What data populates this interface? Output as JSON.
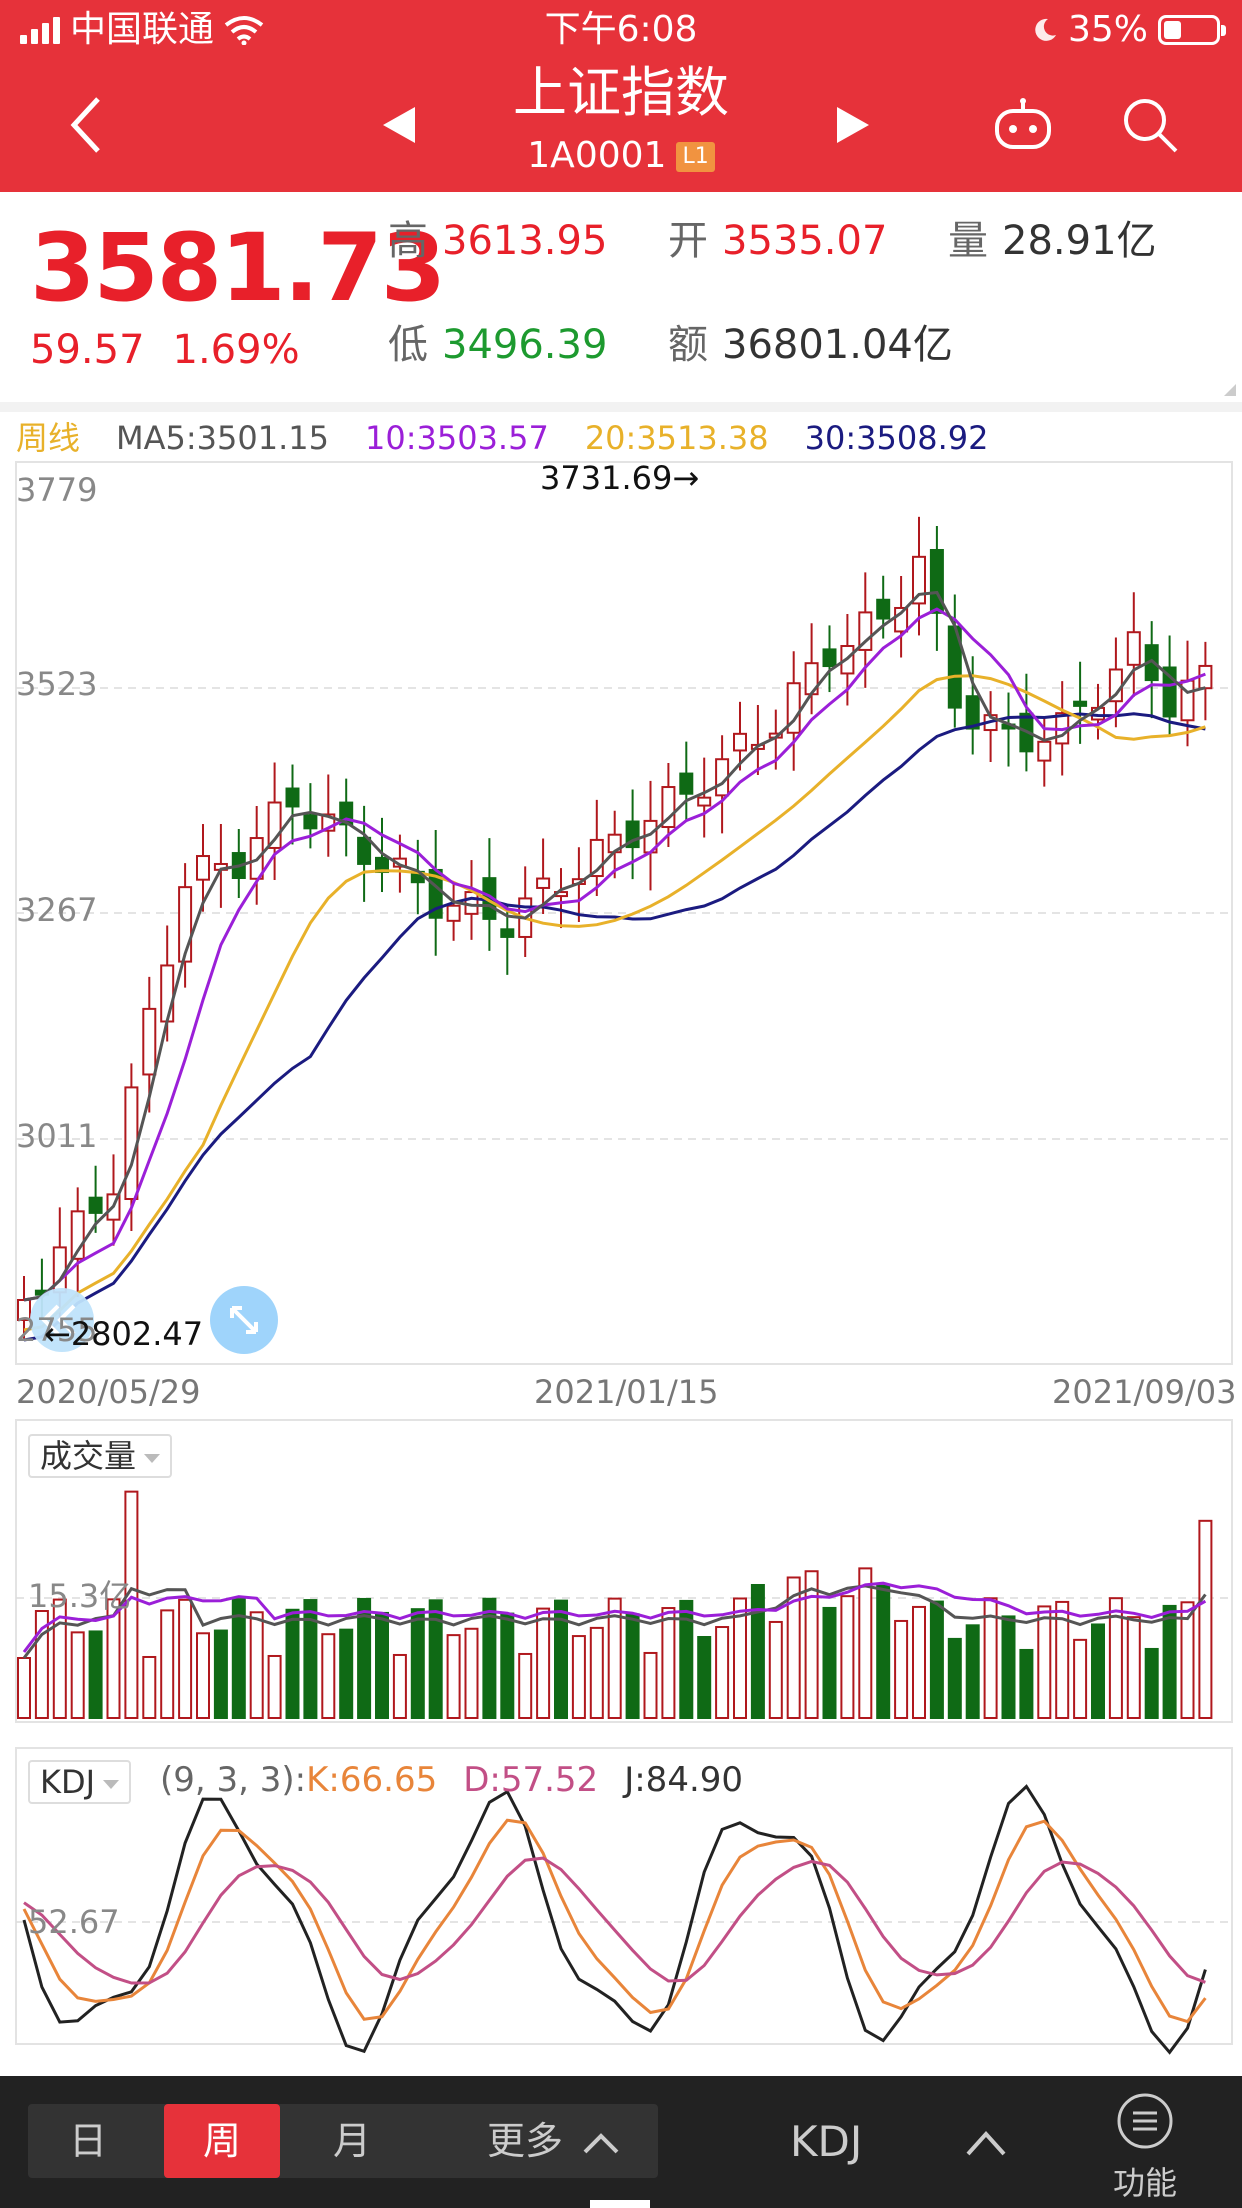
{
  "status_bar": {
    "carrier": "中国联通",
    "time": "下午6:08",
    "battery": "35%"
  },
  "header": {
    "title": "上证指数",
    "code": "1A0001",
    "badge": "L1"
  },
  "icons": {
    "back": "chevron-left-icon",
    "prev": "triangle-left-icon",
    "next": "triangle-right-icon",
    "robot": "robot-icon",
    "search": "search-icon",
    "expand": "expand-icon",
    "arrow_left": "double-arrow-left-icon",
    "menu": "menu-icon",
    "up": "chevron-up-icon"
  },
  "quote": {
    "price": "3581.73",
    "change": "59.57",
    "change_pct": "1.69%",
    "high_label": "高",
    "high": "3613.95",
    "open_label": "开",
    "open": "3535.07",
    "volume_label": "量",
    "volume": "28.91亿",
    "low_label": "低",
    "low": "3496.39",
    "amount_label": "额",
    "amount": "36801.04亿"
  },
  "ma_legend": {
    "period": "周线",
    "ma5": "MA5:3501.15",
    "ma10": "10:3503.57",
    "ma20": "20:3513.38",
    "ma30": "30:3508.92"
  },
  "colors": {
    "brand": "#e6323a",
    "up": "#b0181d",
    "down": "#0f6a15",
    "ma5": "#555555",
    "ma10": "#9b1fd8",
    "ma20": "#e8b12a",
    "ma30": "#1b1b80",
    "k": "#e8853a",
    "d": "#c24f86",
    "j": "#222222"
  },
  "price_chart": {
    "y_ticks": [
      "3779",
      "3523",
      "3267",
      "3011",
      "2755"
    ],
    "high_marker": "3731.69→",
    "low_marker": "←2802.47",
    "dates": [
      "2020/05/29",
      "2021/01/15",
      "2021/09/03"
    ]
  },
  "volume_panel": {
    "selector": "成交量",
    "tick": "15.3亿"
  },
  "kdj_panel": {
    "selector": "KDJ",
    "params": "(9, 3, 3):",
    "k": "K:66.65",
    "d": "D:57.52",
    "j": "J:84.90",
    "tick": "52.67"
  },
  "bottom_bar": {
    "tab_day": "日",
    "tab_week": "周",
    "tab_month": "月",
    "more": "更多",
    "indicator": "KDJ",
    "func_label": "功能"
  }
}
